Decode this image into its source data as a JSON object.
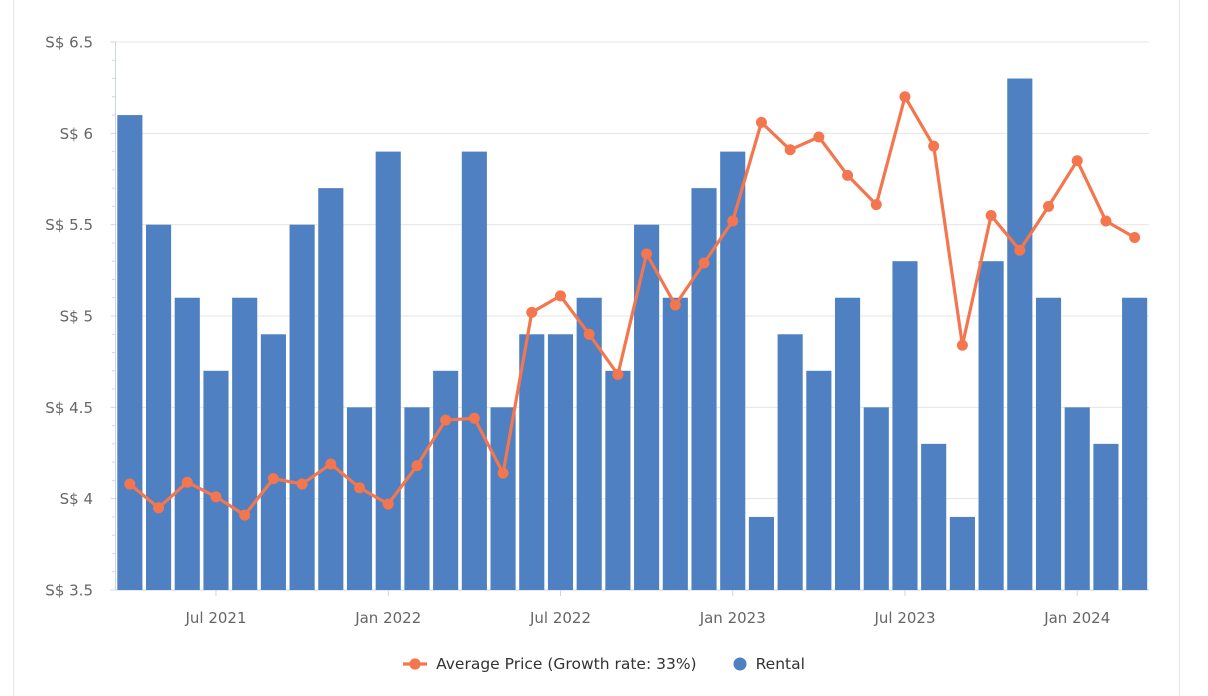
{
  "chart_data": {
    "type": "bar",
    "combo_types": [
      "line",
      "bar"
    ],
    "title": "",
    "xlabel": "",
    "ylabel": "",
    "ylim": [
      3.5,
      6.5
    ],
    "grid": "horizontal",
    "legend_position": "bottom-center",
    "currency_prefix": "S$",
    "categories": [
      "Apr 2021",
      "May 2021",
      "Jun 2021",
      "Jul 2021",
      "Aug 2021",
      "Sep 2021",
      "Oct 2021",
      "Nov 2021",
      "Dec 2021",
      "Jan 2022",
      "Feb 2022",
      "Mar 2022",
      "Apr 2022",
      "May 2022",
      "Jun 2022",
      "Jul 2022",
      "Aug 2022",
      "Sep 2022",
      "Oct 2022",
      "Nov 2022",
      "Dec 2022",
      "Jan 2023",
      "Feb 2023",
      "Mar 2023",
      "Apr 2023",
      "May 2023",
      "Jun 2023",
      "Jul 2023",
      "Aug 2023",
      "Sep 2023",
      "Oct 2023",
      "Nov 2023",
      "Dec 2023",
      "Jan 2024",
      "Feb 2024",
      "Mar 2024"
    ],
    "series": [
      {
        "name": "Average Price (Growth rate: 33%)",
        "type": "line",
        "color": "#f4764e",
        "values": [
          4.08,
          3.95,
          4.09,
          4.01,
          3.91,
          4.11,
          4.08,
          4.19,
          4.06,
          3.97,
          4.18,
          4.43,
          4.44,
          4.14,
          5.02,
          5.11,
          4.9,
          4.68,
          5.34,
          5.06,
          5.29,
          5.52,
          6.06,
          5.91,
          5.98,
          5.77,
          5.61,
          6.2,
          5.93,
          4.84,
          5.55,
          5.36,
          5.6,
          5.85,
          5.52,
          5.43
        ]
      },
      {
        "name": "Rental",
        "type": "bar",
        "color": "#4f80c1",
        "values": [
          6.1,
          5.5,
          5.1,
          4.7,
          5.1,
          4.9,
          5.5,
          5.7,
          4.5,
          5.9,
          4.5,
          4.7,
          5.9,
          4.5,
          4.9,
          4.9,
          5.1,
          4.7,
          5.5,
          5.1,
          5.7,
          5.9,
          3.9,
          4.9,
          4.7,
          5.1,
          4.5,
          5.3,
          4.3,
          3.9,
          5.3,
          6.3,
          5.1,
          4.5,
          4.3,
          5.1
        ]
      }
    ],
    "yticks": [
      {
        "value": 6.5,
        "label": "S$ 6.5"
      },
      {
        "value": 6.0,
        "label": "S$ 6"
      },
      {
        "value": 5.5,
        "label": "S$ 5.5"
      },
      {
        "value": 5.0,
        "label": "S$ 5"
      },
      {
        "value": 4.5,
        "label": "S$ 4.5"
      },
      {
        "value": 4.0,
        "label": "S$ 4"
      },
      {
        "value": 3.5,
        "label": "S$ 3.5"
      }
    ],
    "xticks": [
      {
        "index": 3,
        "label": "Jul 2021"
      },
      {
        "index": 9,
        "label": "Jan 2022"
      },
      {
        "index": 15,
        "label": "Jul 2022"
      },
      {
        "index": 21,
        "label": "Jan 2023"
      },
      {
        "index": 27,
        "label": "Jul 2023"
      },
      {
        "index": 33,
        "label": "Jan 2024"
      }
    ],
    "colors": {
      "grid_line": "#e6e6e6",
      "axis_line": "#ccd6eb",
      "tick_mark": "#ccd6eb",
      "axis_label_text": "#666666",
      "legend_text": "#333333",
      "background": "#ffffff",
      "page_border": "#e7e7e7"
    }
  }
}
